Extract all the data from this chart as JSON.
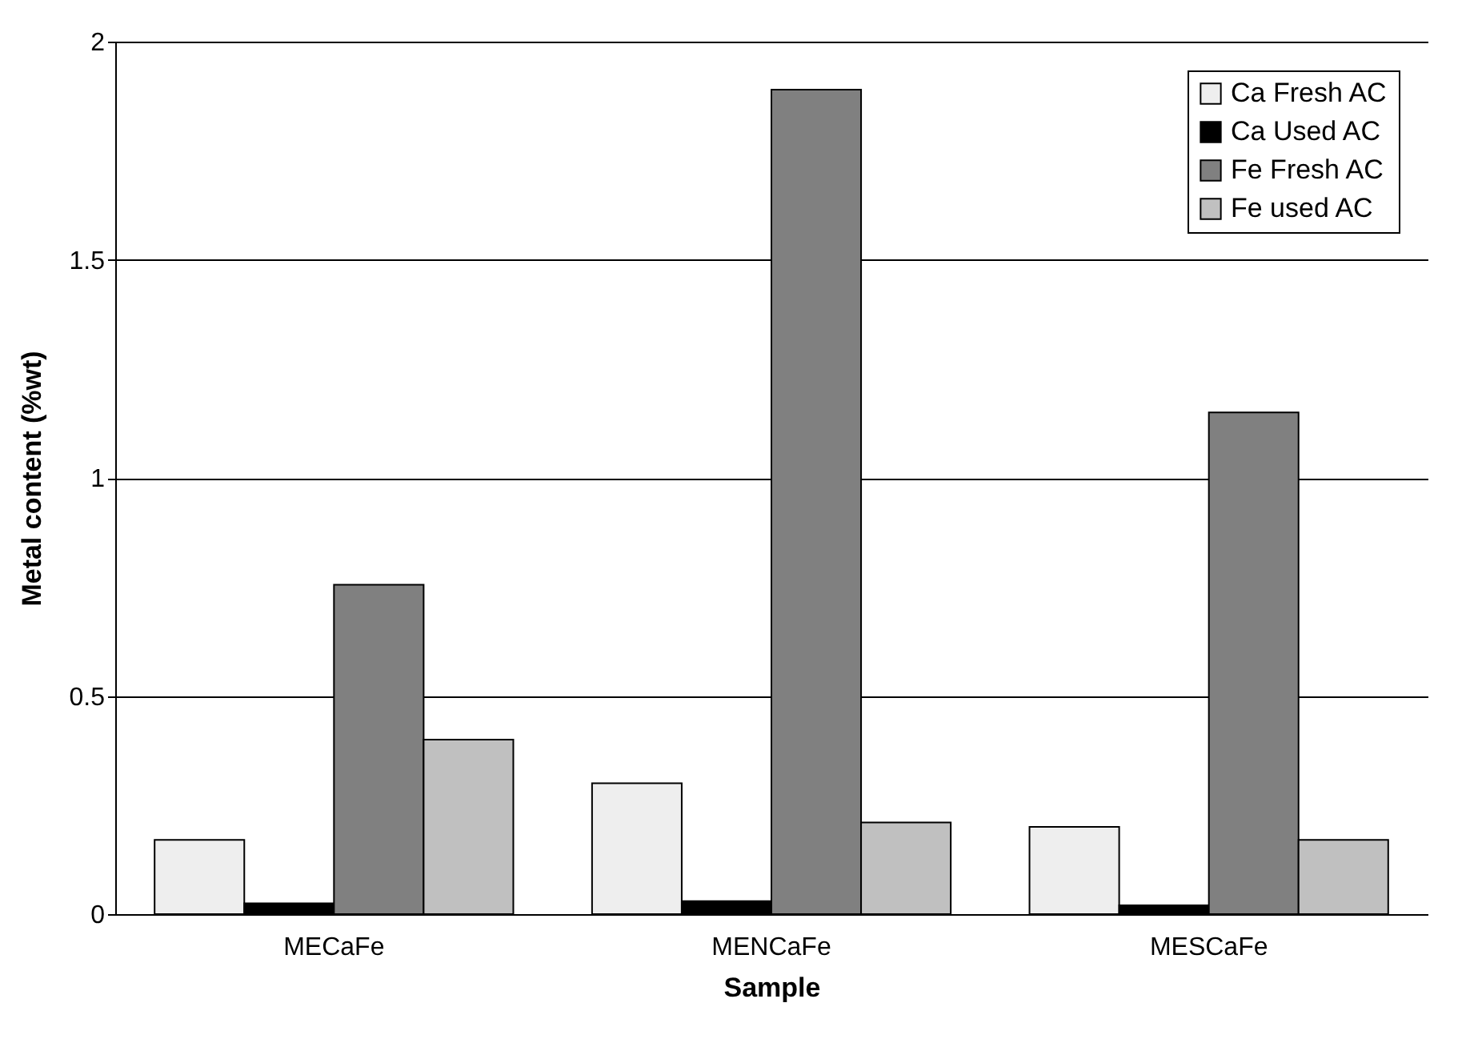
{
  "chart_data": {
    "type": "bar",
    "xlabel": "Sample",
    "ylabel": "Metal content (%wt)",
    "categories": [
      "MECaFe",
      "MENCaFe",
      "MESCaFe"
    ],
    "series": [
      {
        "name": "Ca Fresh AC",
        "color": "#eeeeee",
        "values": [
          0.17,
          0.3,
          0.2
        ]
      },
      {
        "name": "Ca Used AC",
        "color": "#000000",
        "values": [
          0.025,
          0.03,
          0.02
        ]
      },
      {
        "name": "Fe Fresh AC",
        "color": "#808080",
        "values": [
          0.755,
          1.89,
          1.15
        ]
      },
      {
        "name": "Fe used AC",
        "color": "#c0c0c0",
        "values": [
          0.4,
          0.21,
          0.17
        ]
      }
    ],
    "ylim": [
      0,
      2
    ],
    "yticks": [
      0,
      0.5,
      1,
      1.5,
      2
    ],
    "grid": "y",
    "legend": "top right"
  }
}
